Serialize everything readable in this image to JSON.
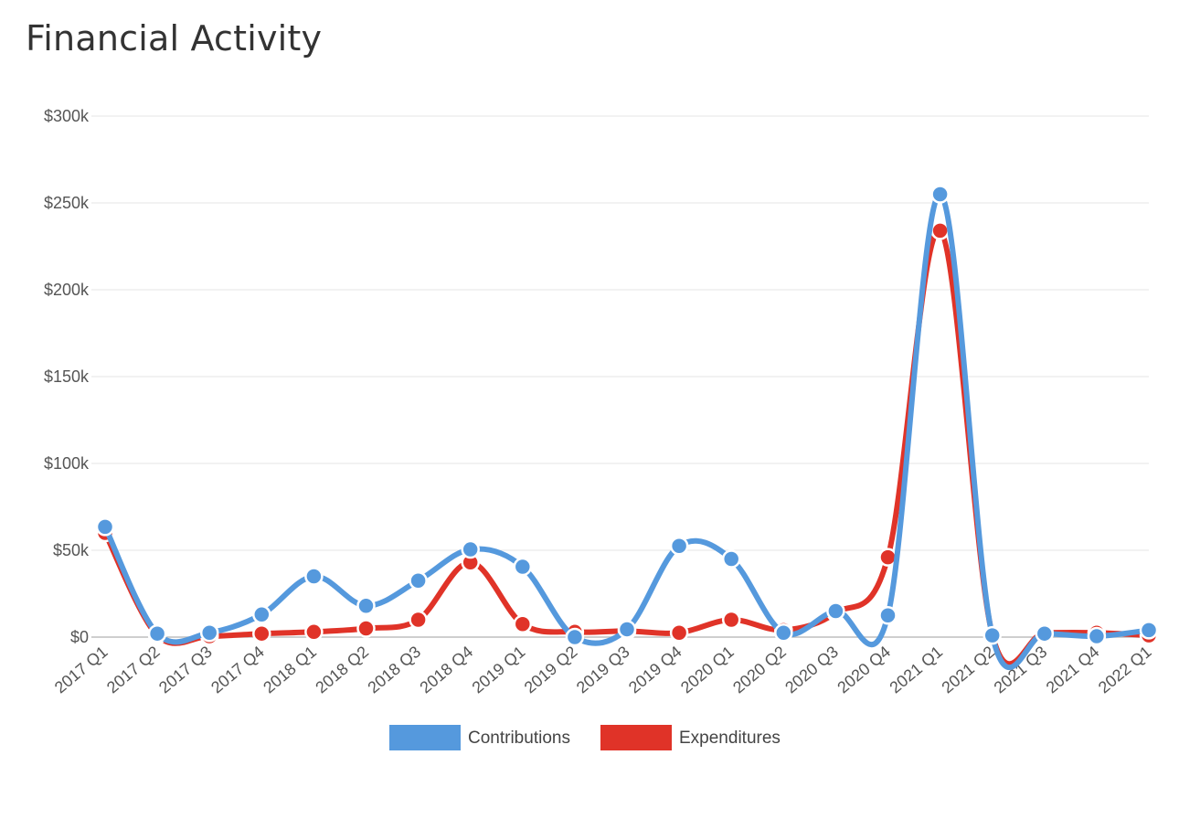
{
  "page": {
    "title": "Financial Activity"
  },
  "colors": {
    "contributions": "#5599dd",
    "expenditures": "#e03328",
    "grid": "#e6e6e6",
    "baseline": "#bdbdbd"
  },
  "chart_data": {
    "type": "line",
    "title": "",
    "xlabel": "",
    "ylabel": "",
    "categories": [
      "2017 Q1",
      "2017 Q2",
      "2017 Q3",
      "2017 Q4",
      "2018 Q1",
      "2018 Q2",
      "2018 Q3",
      "2018 Q4",
      "2019 Q1",
      "2019 Q2",
      "2019 Q3",
      "2019 Q4",
      "2020 Q1",
      "2020 Q2",
      "2020 Q3",
      "2020 Q4",
      "2021 Q1",
      "2021 Q2",
      "2021 Q3",
      "2021 Q4",
      "2022 Q1"
    ],
    "ylim": [
      0,
      300000
    ],
    "yticks": [
      0,
      50000,
      100000,
      150000,
      200000,
      250000,
      300000
    ],
    "ytick_labels": [
      "$0",
      "$50k",
      "$100k",
      "$150k",
      "$200k",
      "$250k",
      "$300k"
    ],
    "grid": true,
    "legend_position": "bottom-center",
    "series": [
      {
        "name": "Expenditures",
        "color": "#e03328",
        "values": [
          60000,
          1000,
          500,
          2000,
          3000,
          5000,
          10000,
          43000,
          7500,
          3000,
          3500,
          2500,
          10000,
          4000,
          14000,
          46000,
          234000,
          1500,
          2500,
          2500,
          1000
        ]
      },
      {
        "name": "Contributions",
        "color": "#5599dd",
        "values": [
          63500,
          2000,
          2500,
          13000,
          35000,
          18000,
          32500,
          50500,
          40500,
          0,
          4500,
          52500,
          45000,
          2500,
          15000,
          12500,
          255000,
          1000,
          2000,
          500,
          4000
        ]
      }
    ],
    "legend": [
      "Contributions",
      "Expenditures"
    ]
  }
}
